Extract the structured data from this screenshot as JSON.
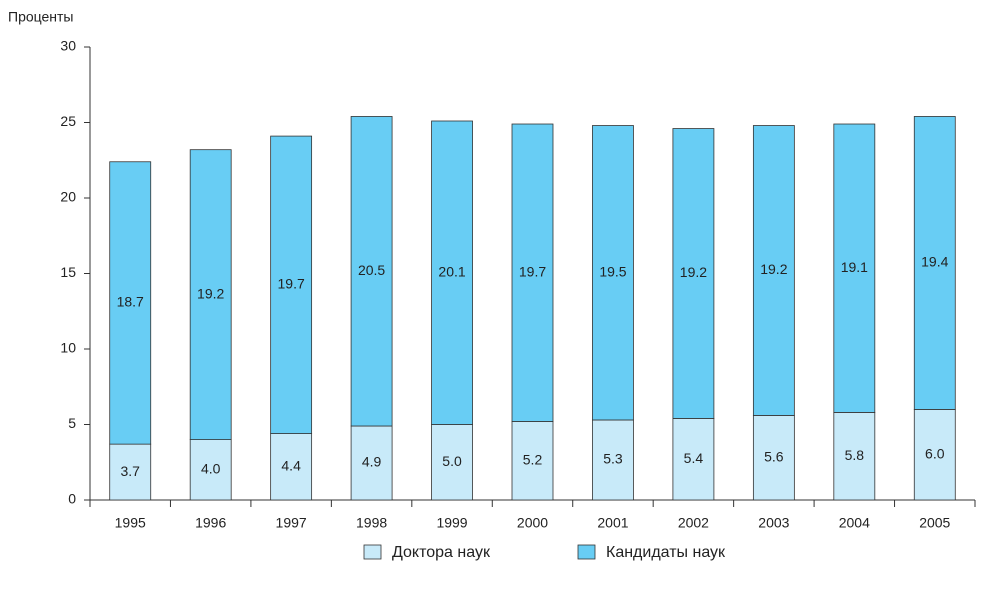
{
  "chart_data": {
    "type": "stacked_bar",
    "y_axis_label": "Проценты",
    "categories": [
      "1995",
      "1996",
      "1997",
      "1998",
      "1999",
      "2000",
      "2001",
      "2002",
      "2003",
      "2004",
      "2005"
    ],
    "series": [
      {
        "name": "Доктора наук",
        "color": "#c8eaf9",
        "values": [
          3.7,
          4.0,
          4.4,
          4.9,
          5.0,
          5.2,
          5.3,
          5.4,
          5.6,
          5.8,
          6.0
        ],
        "value_labels": [
          "3.7",
          "4.0",
          "4.4",
          "4.9",
          "5.0",
          "5.2",
          "5.3",
          "5.4",
          "5.6",
          "5.8",
          "6.0"
        ]
      },
      {
        "name": "Кандидаты наук",
        "color": "#68cdf4",
        "values": [
          18.7,
          19.2,
          19.7,
          20.5,
          20.1,
          19.7,
          19.5,
          19.2,
          19.2,
          19.1,
          19.4
        ],
        "value_labels": [
          "18.7",
          "19.2",
          "19.7",
          "20.5",
          "20.1",
          "19.7",
          "19.5",
          "19.2",
          "19.2",
          "19.1",
          "19.4"
        ]
      }
    ],
    "ylim": [
      0,
      30
    ],
    "yticks": [
      0,
      5,
      10,
      15,
      20,
      25,
      30
    ],
    "grid": false,
    "legend": "bottom"
  }
}
